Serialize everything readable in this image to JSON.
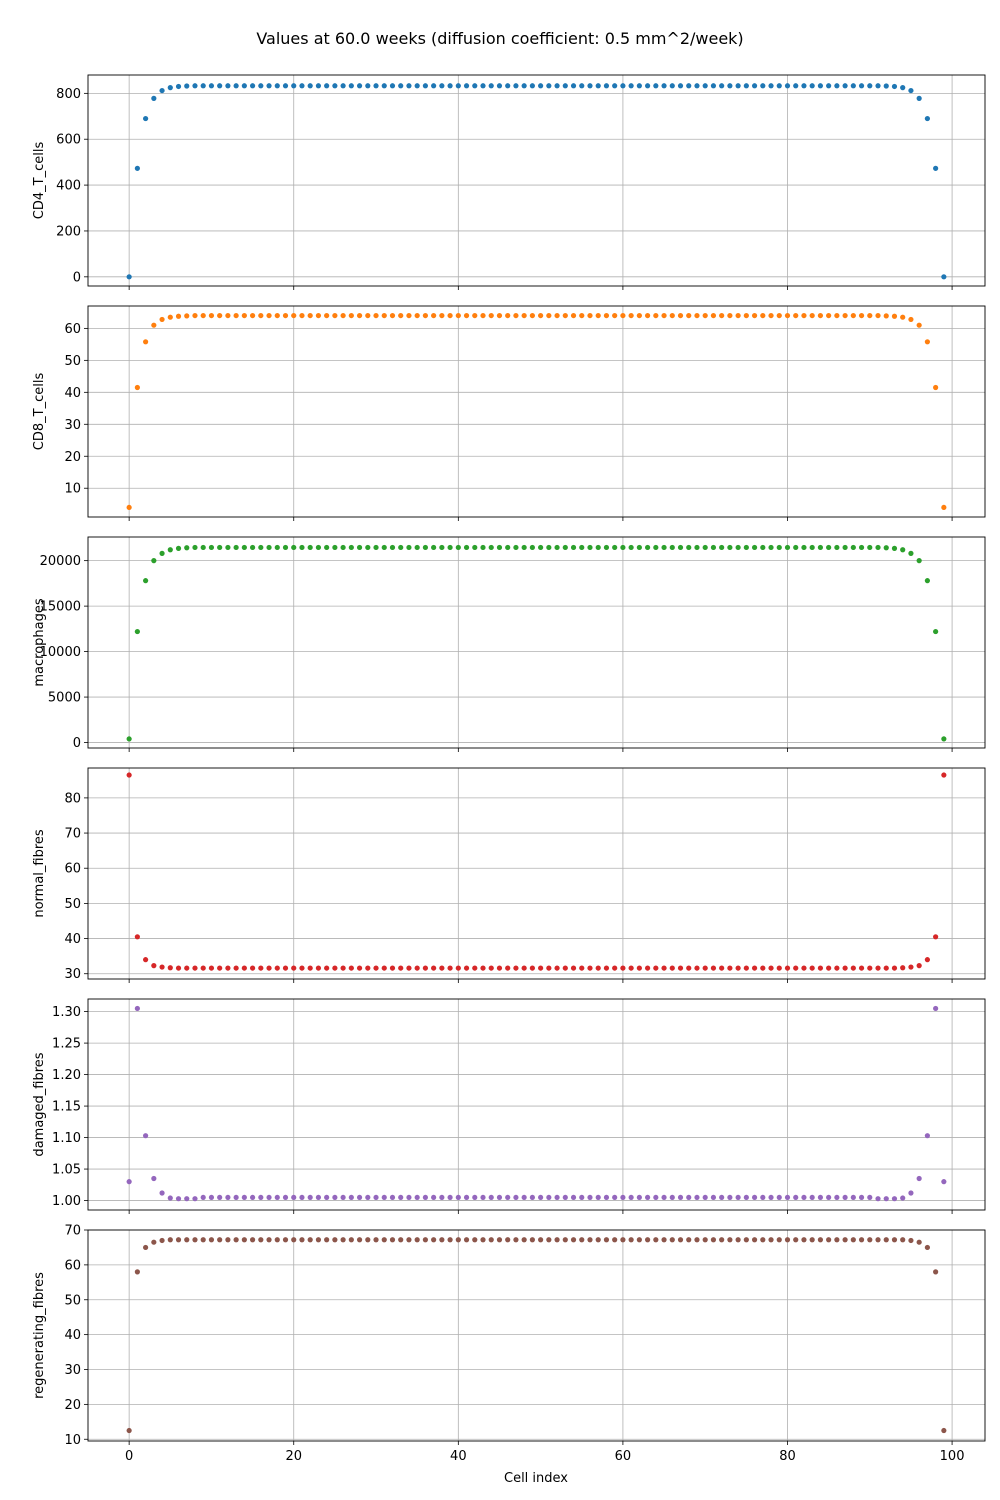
{
  "title": "Values at 60.0 weeks (diffusion coefficient: 0.5 mm^2/week)",
  "xlabel": "Cell index",
  "chart_data": {
    "type": "scatter",
    "title": "Values at 60.0 weeks (diffusion coefficient: 0.5 mm^2/week)",
    "xlabel": "Cell index",
    "x_range": [
      0,
      99
    ],
    "xlim": [
      -5,
      104
    ],
    "x_ticks": [
      0,
      20,
      40,
      60,
      80,
      100
    ],
    "grid": true,
    "legend": "none",
    "shared_x": true,
    "panels": [
      {
        "name": "CD4_T_cells",
        "ylabel": "CD4_T_cells",
        "color": "#1f77b4",
        "ylim": [
          -40,
          880
        ],
        "y_ticks": [
          0,
          200,
          400,
          600,
          800
        ],
        "profile_edge": [
          0,
          473,
          690,
          778,
          812,
          825,
          830,
          832,
          833
        ],
        "plateau": 833
      },
      {
        "name": "CD8_T_cells",
        "ylabel": "CD8_T_cells",
        "color": "#ff7f0e",
        "ylim": [
          1,
          67
        ],
        "y_ticks": [
          10,
          20,
          30,
          40,
          50,
          60
        ],
        "profile_edge": [
          4,
          41.5,
          55.8,
          61,
          62.8,
          63.5,
          63.8,
          63.9,
          64
        ],
        "plateau": 64
      },
      {
        "name": "macrophages",
        "ylabel": "macrophages",
        "color": "#2ca02c",
        "ylim": [
          -600,
          22600
        ],
        "y_ticks": [
          0,
          5000,
          10000,
          15000,
          20000
        ],
        "profile_edge": [
          400,
          12200,
          17800,
          20000,
          20800,
          21200,
          21350,
          21420,
          21450
        ],
        "plateau": 21450
      },
      {
        "name": "normal_fibres",
        "ylabel": "normal_fibres",
        "color": "#d62728",
        "ylim": [
          28.5,
          88.5
        ],
        "y_ticks": [
          30,
          40,
          50,
          60,
          70,
          80
        ],
        "profile_edge": [
          86.5,
          40.5,
          34,
          32.3,
          31.9,
          31.7,
          31.6,
          31.6,
          31.6
        ],
        "plateau": 31.6
      },
      {
        "name": "damaged_fibres",
        "ylabel": "damaged_fibres",
        "color": "#9467bd",
        "ylim": [
          0.985,
          1.32
        ],
        "y_ticks": [
          1.0,
          1.05,
          1.1,
          1.15,
          1.2,
          1.25,
          1.3
        ],
        "y_tick_labels": [
          "1.00",
          "1.05",
          "1.10",
          "1.15",
          "1.20",
          "1.25",
          "1.30"
        ],
        "profile_edge": [
          1.03,
          1.305,
          1.103,
          1.035,
          1.012,
          1.004,
          1.003,
          1.003,
          1.003
        ],
        "plateau": 1.005
      },
      {
        "name": "regenerating_fibres",
        "ylabel": "regenerating_fibres",
        "color": "#8c564b",
        "ylim": [
          9.5,
          70
        ],
        "y_ticks": [
          10,
          20,
          30,
          40,
          50,
          60,
          70
        ],
        "profile_edge": [
          12.5,
          58,
          65,
          66.5,
          67,
          67.2,
          67.2,
          67.2,
          67.2
        ],
        "plateau": 67.2
      }
    ]
  }
}
